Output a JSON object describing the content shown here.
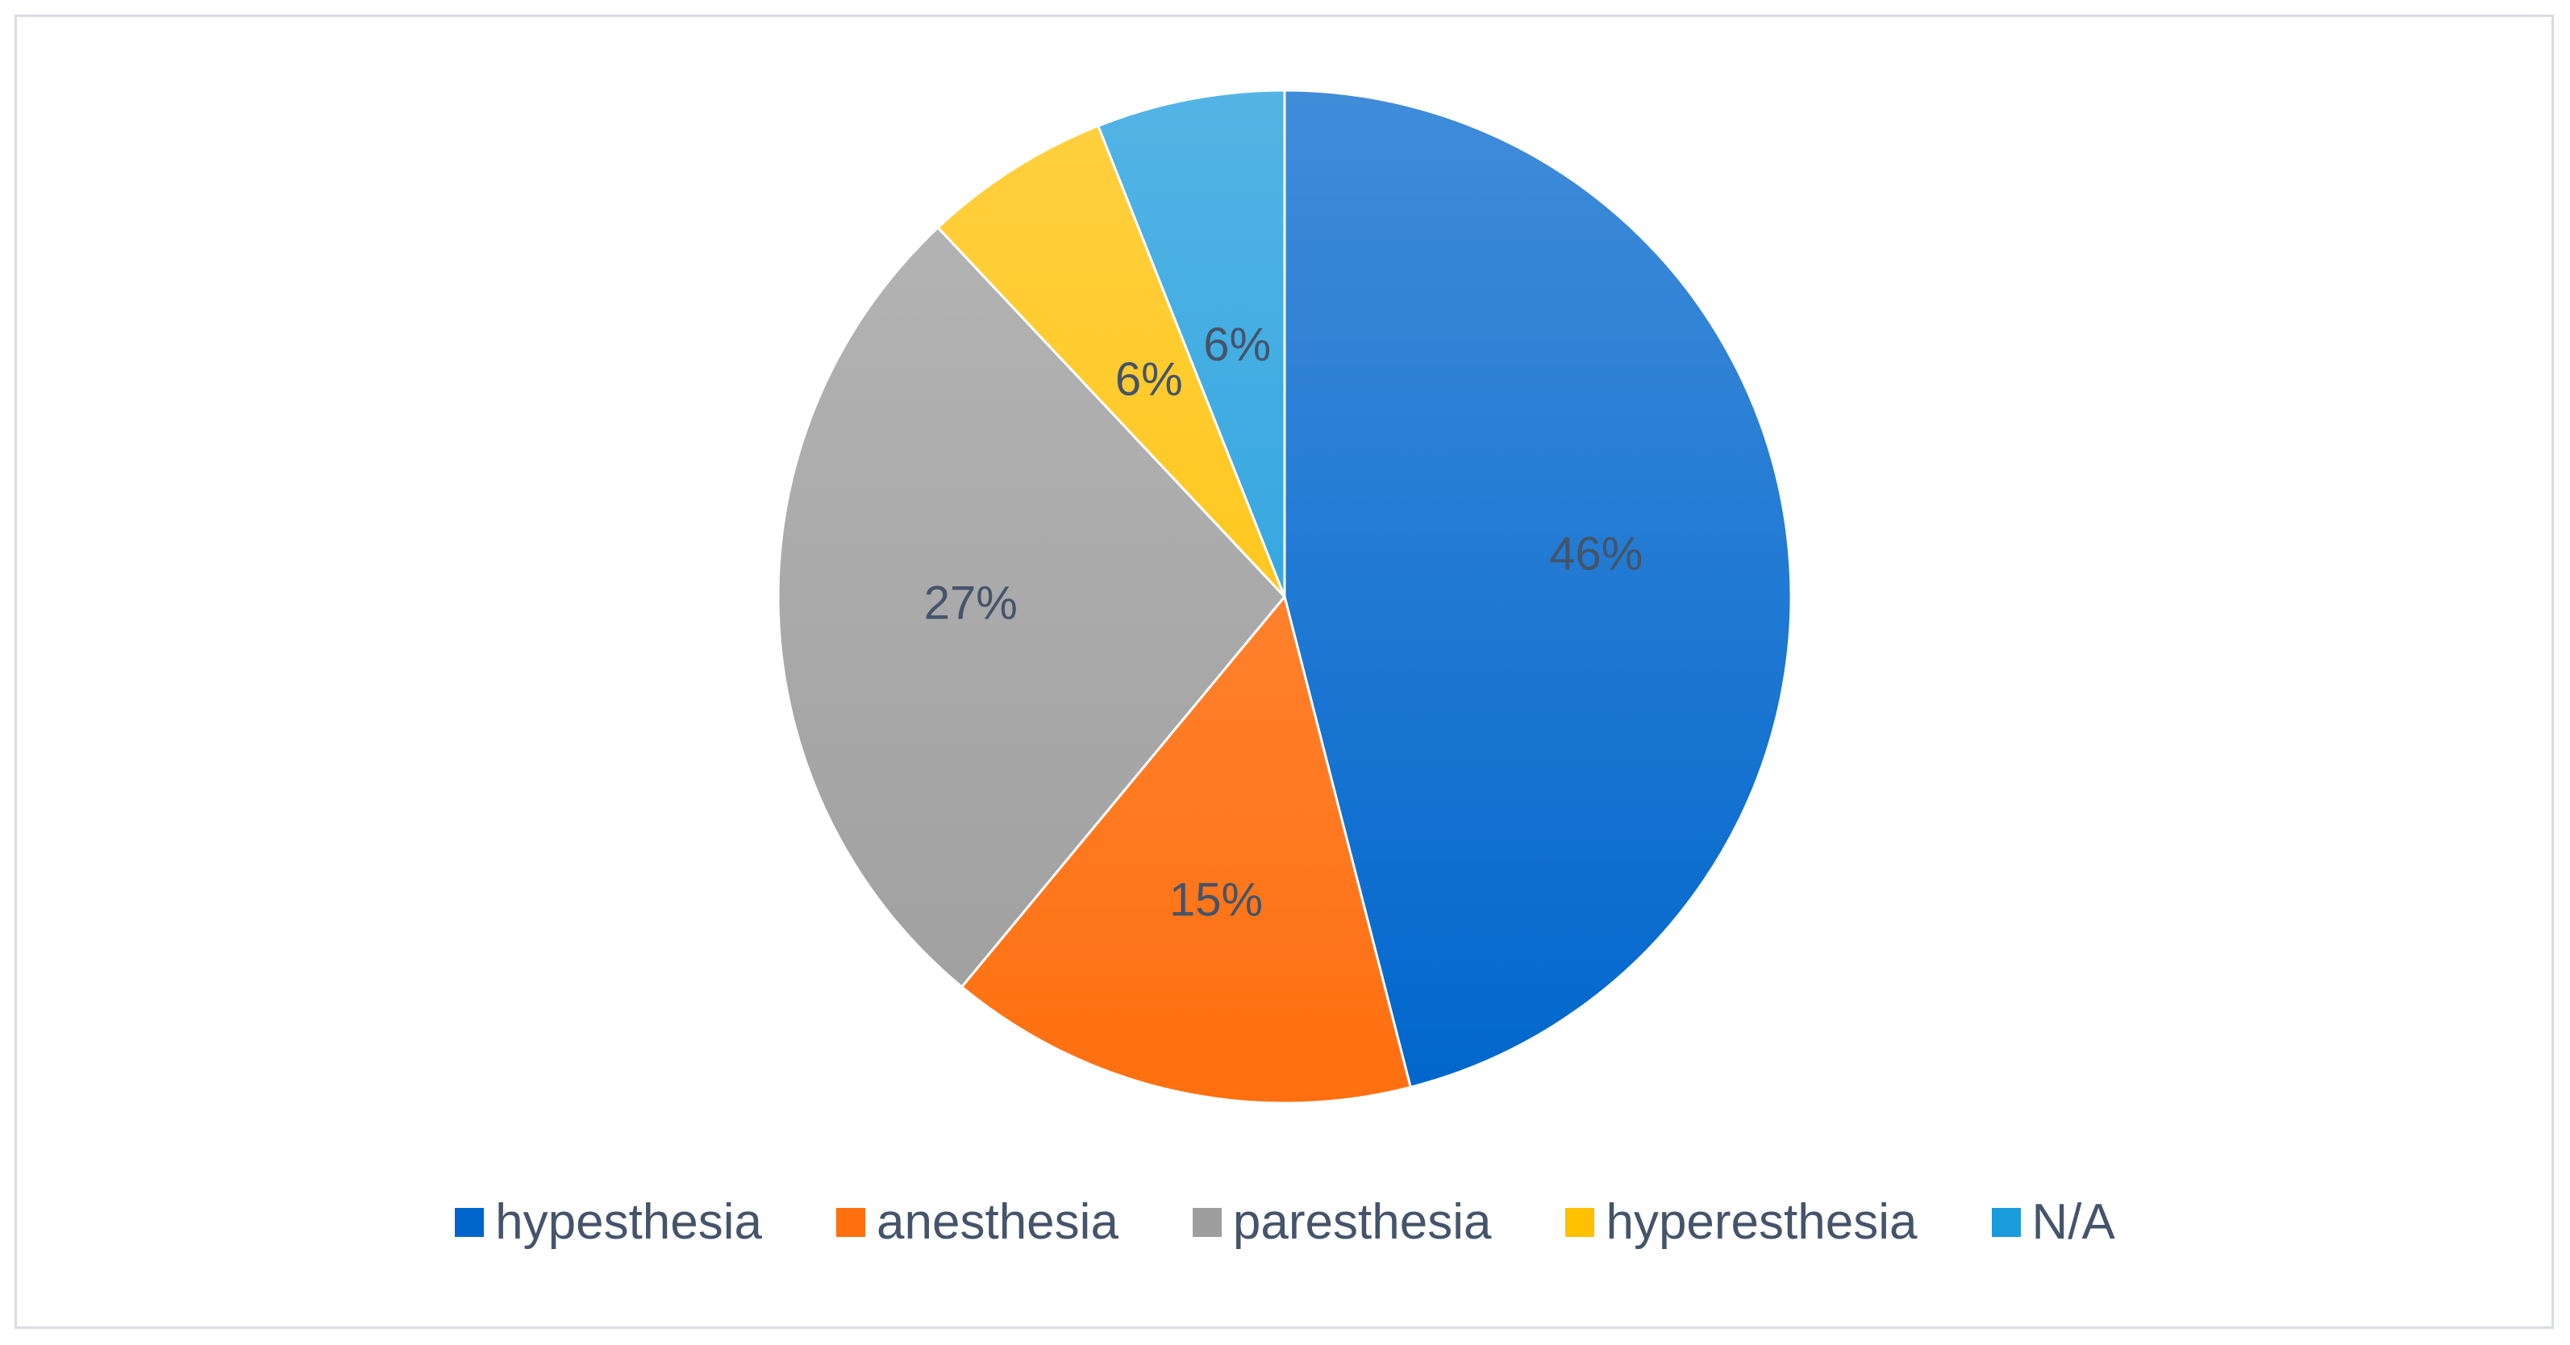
{
  "chart_data": {
    "type": "pie",
    "categories": [
      "hypesthesia",
      "anesthesia",
      "paresthesia",
      "hyperesthesia",
      "N/A"
    ],
    "values": [
      46,
      15,
      27,
      6,
      6
    ],
    "data_labels": [
      "46%",
      "15%",
      "27%",
      "6%",
      "6%"
    ],
    "colors": [
      "#0066cc",
      "#ff6f0f",
      "#9e9e9e",
      "#ffc000",
      "#1a9bdc"
    ],
    "start_angle_deg": 0,
    "direction": "clockwise",
    "legend": {
      "placement": "bottom",
      "items": [
        {
          "label": "hypesthesia",
          "color": "#0066cc"
        },
        {
          "label": "anesthesia",
          "color": "#ff6f0f"
        },
        {
          "label": "paresthesia",
          "color": "#9e9e9e"
        },
        {
          "label": "hyperesthesia",
          "color": "#ffc000"
        },
        {
          "label": "N/A",
          "color": "#1a9bdc"
        }
      ]
    }
  }
}
